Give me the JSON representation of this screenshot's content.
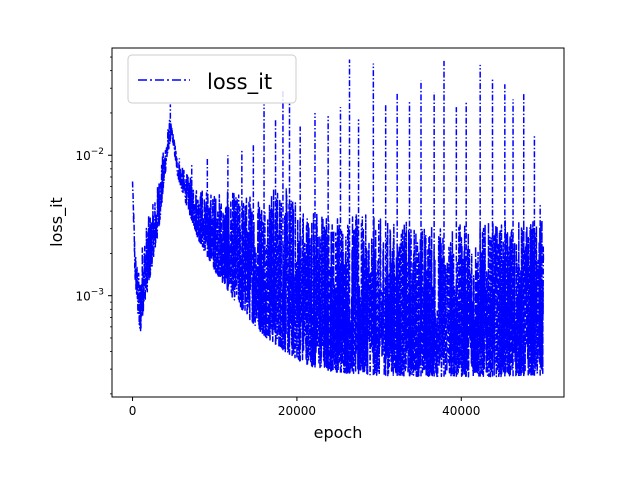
{
  "chart_data": {
    "type": "line",
    "xlabel": "epoch",
    "ylabel": "loss_it",
    "xlim": [
      -2500,
      52500
    ],
    "ylim": [
      0.00019,
      0.058
    ],
    "yscale": "log",
    "grid": false,
    "legend_position": "top-left",
    "x_ticks": [
      {
        "value": 0,
        "label": "0"
      },
      {
        "value": 20000,
        "label": "20000"
      },
      {
        "value": 40000,
        "label": "40000"
      }
    ],
    "y_ticks": [
      {
        "value": 0.001,
        "label": "10",
        "exponent": "−3"
      },
      {
        "value": 0.01,
        "label": "10",
        "exponent": "−2"
      }
    ],
    "series": [
      {
        "name": "loss_it",
        "color": "#0000ff",
        "line_style": "dash-dot",
        "x": [
          0,
          300,
          600,
          900,
          1200,
          1500,
          2000,
          2500,
          3000,
          3500,
          4000,
          4500,
          4800,
          5500,
          6500,
          8000,
          10000,
          12000,
          14000,
          16000,
          18000,
          20000,
          22000,
          24000,
          26000,
          28000,
          30000,
          33000,
          36000,
          39000,
          42000,
          45000,
          48000,
          50000
        ],
        "lower": [
          0.0065,
          0.0013,
          0.0008,
          0.0005,
          0.0007,
          0.0009,
          0.0012,
          0.0018,
          0.0025,
          0.004,
          0.0075,
          0.012,
          0.0135,
          0.007,
          0.0045,
          0.0025,
          0.0015,
          0.001,
          0.0007,
          0.00052,
          0.00042,
          0.00035,
          0.00031,
          0.00029,
          0.00028,
          0.000275,
          0.00027,
          0.000268,
          0.000266,
          0.000265,
          0.000265,
          0.000266,
          0.000268,
          0.00027
        ],
        "typical_upper": [
          0.0065,
          0.0024,
          0.0016,
          0.0014,
          0.0025,
          0.003,
          0.0038,
          0.0045,
          0.006,
          0.009,
          0.013,
          0.018,
          0.016,
          0.0095,
          0.0075,
          0.006,
          0.0055,
          0.0055,
          0.0055,
          0.006,
          0.0065,
          0.005,
          0.0045,
          0.004,
          0.004,
          0.0038,
          0.0036,
          0.0034,
          0.0033,
          0.0032,
          0.0033,
          0.0034,
          0.0035,
          0.0035
        ],
        "peak": {
          "epoch": 4600,
          "value": 0.023
        },
        "spikes": [
          {
            "epoch": 5700,
            "value": 0.0095
          },
          {
            "epoch": 7200,
            "value": 0.0085
          },
          {
            "epoch": 9100,
            "value": 0.0095
          },
          {
            "epoch": 11600,
            "value": 0.01
          },
          {
            "epoch": 13300,
            "value": 0.011
          },
          {
            "epoch": 14700,
            "value": 0.012
          },
          {
            "epoch": 16000,
            "value": 0.023
          },
          {
            "epoch": 17400,
            "value": 0.018
          },
          {
            "epoch": 18300,
            "value": 0.029
          },
          {
            "epoch": 19100,
            "value": 0.024
          },
          {
            "epoch": 20400,
            "value": 0.016
          },
          {
            "epoch": 22200,
            "value": 0.02
          },
          {
            "epoch": 23800,
            "value": 0.019
          },
          {
            "epoch": 25300,
            "value": 0.022
          },
          {
            "epoch": 26400,
            "value": 0.048
          },
          {
            "epoch": 27500,
            "value": 0.018
          },
          {
            "epoch": 29300,
            "value": 0.045
          },
          {
            "epoch": 30800,
            "value": 0.023
          },
          {
            "epoch": 32200,
            "value": 0.028
          },
          {
            "epoch": 33700,
            "value": 0.024
          },
          {
            "epoch": 35100,
            "value": 0.034
          },
          {
            "epoch": 36700,
            "value": 0.028
          },
          {
            "epoch": 37900,
            "value": 0.047
          },
          {
            "epoch": 39400,
            "value": 0.022
          },
          {
            "epoch": 40600,
            "value": 0.024
          },
          {
            "epoch": 42300,
            "value": 0.044
          },
          {
            "epoch": 43800,
            "value": 0.035
          },
          {
            "epoch": 45300,
            "value": 0.032
          },
          {
            "epoch": 46300,
            "value": 0.025
          },
          {
            "epoch": 47600,
            "value": 0.028
          },
          {
            "epoch": 48900,
            "value": 0.014
          },
          {
            "epoch": 49600,
            "value": 0.0045
          }
        ]
      }
    ]
  }
}
